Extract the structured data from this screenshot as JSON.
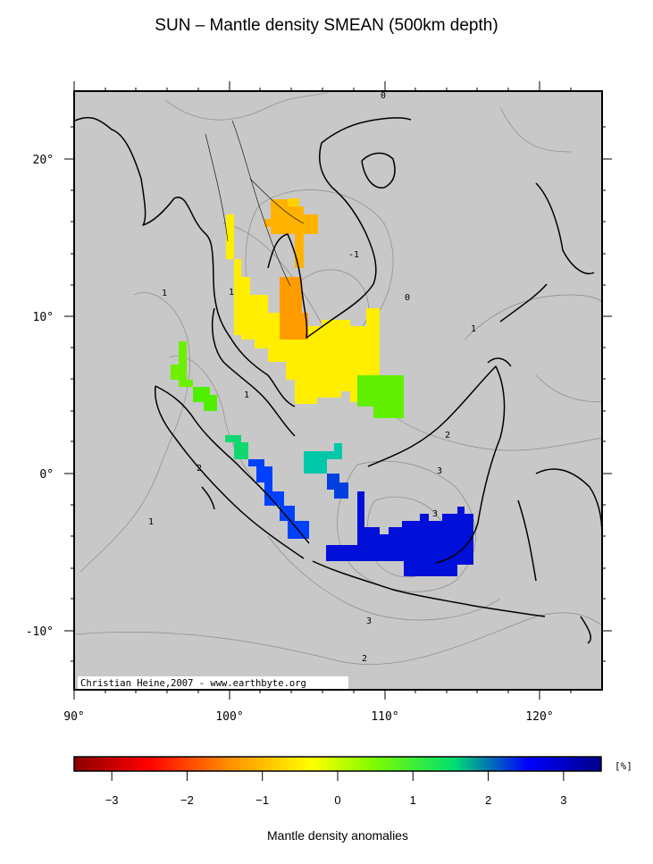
{
  "title": "SUN – Mantle density SMEAN (500km depth)",
  "credit": "Christian Heine,2007 - www.earthbyte.org",
  "map": {
    "lon_range": [
      90,
      124
    ],
    "lat_range": [
      -14,
      24
    ],
    "x_ticks": [
      {
        "v": 90,
        "label": "90°"
      },
      {
        "v": 100,
        "label": "100°"
      },
      {
        "v": 110,
        "label": "110°"
      },
      {
        "v": 120,
        "label": "120°"
      }
    ],
    "y_ticks": [
      {
        "v": 20,
        "label": "20°"
      },
      {
        "v": 10,
        "label": "10°"
      },
      {
        "v": 0,
        "label": "0°"
      },
      {
        "v": -10,
        "label": "-10°"
      }
    ],
    "background_color": "#c8c8c8",
    "contour_labels": [
      "0",
      "1",
      "1",
      "0",
      "1",
      "2",
      "2",
      "3",
      "3",
      "3",
      "2",
      "1",
      "-1",
      "1"
    ]
  },
  "colorbar": {
    "title": "Mantle density anomalies",
    "unit": "[%]",
    "ticks": [
      "−3",
      "−2",
      "−1",
      "0",
      "1",
      "2",
      "3"
    ],
    "tick_values": [
      -3,
      -2,
      -1,
      0,
      1,
      2,
      3
    ],
    "range": [
      -3.5,
      3.5
    ],
    "colors": [
      "#8b0000",
      "#ff0000",
      "#ff8c00",
      "#ffff00",
      "#7cfc00",
      "#00e070",
      "#0000ff",
      "#00008b"
    ]
  }
}
